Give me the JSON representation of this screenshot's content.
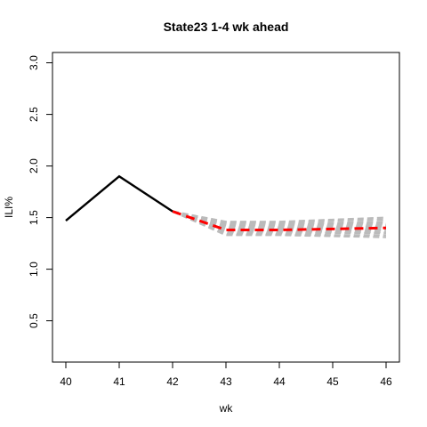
{
  "chart_data": {
    "type": "line",
    "title": "State23 1-4 wk ahead",
    "xlabel": "wk",
    "ylabel": "ILI%",
    "xlim": [
      40,
      46
    ],
    "ylim": [
      0.1,
      3.1
    ],
    "x_ticks": [
      "40",
      "41",
      "42",
      "43",
      "44",
      "45",
      "46"
    ],
    "y_ticks": [
      "0.5",
      "1.0",
      "1.5",
      "2.0",
      "2.5",
      "3.0"
    ],
    "grid": false,
    "series": [
      {
        "role": "observed",
        "color": "#000000",
        "style": "solid",
        "x": [
          40,
          41,
          42
        ],
        "y": [
          1.47,
          1.9,
          1.56
        ]
      },
      {
        "role": "point-forecast",
        "color": "#ff0000",
        "style": "dashed",
        "x": [
          42,
          43,
          44,
          45,
          46
        ],
        "y": [
          1.56,
          1.38,
          1.38,
          1.39,
          1.4
        ]
      }
    ],
    "ensemble": {
      "color": "#bbbbbb",
      "style": "dashed",
      "x": [
        42,
        43,
        44,
        45,
        46
      ],
      "members": [
        [
          1.56,
          1.33,
          1.33,
          1.32,
          1.31
        ],
        [
          1.56,
          1.34,
          1.34,
          1.33,
          1.33
        ],
        [
          1.56,
          1.35,
          1.35,
          1.35,
          1.35
        ],
        [
          1.56,
          1.36,
          1.36,
          1.36,
          1.36
        ],
        [
          1.56,
          1.37,
          1.37,
          1.37,
          1.38
        ],
        [
          1.56,
          1.38,
          1.38,
          1.39,
          1.39
        ],
        [
          1.56,
          1.39,
          1.39,
          1.4,
          1.41
        ],
        [
          1.56,
          1.4,
          1.4,
          1.41,
          1.42
        ],
        [
          1.56,
          1.41,
          1.41,
          1.42,
          1.43
        ],
        [
          1.56,
          1.42,
          1.42,
          1.43,
          1.44
        ],
        [
          1.56,
          1.43,
          1.43,
          1.44,
          1.45
        ],
        [
          1.56,
          1.44,
          1.44,
          1.45,
          1.46
        ],
        [
          1.56,
          1.45,
          1.45,
          1.47,
          1.48
        ],
        [
          1.56,
          1.46,
          1.46,
          1.48,
          1.5
        ]
      ]
    }
  }
}
